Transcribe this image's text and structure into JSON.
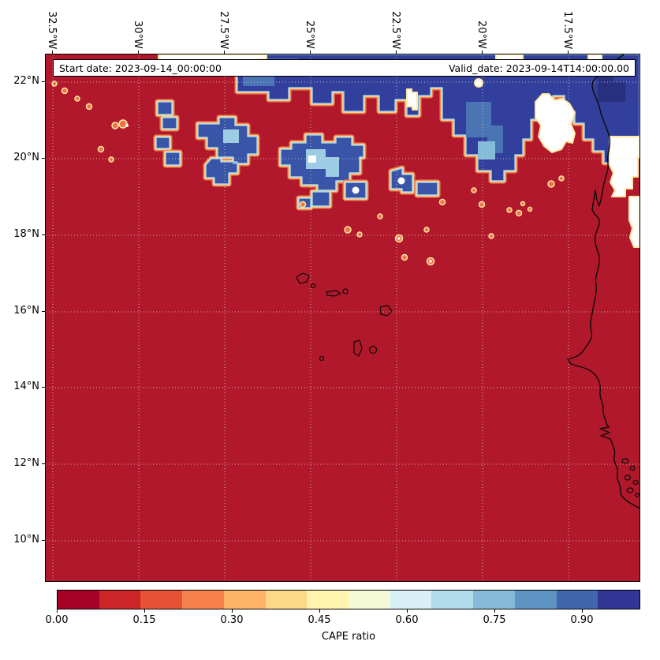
{
  "figure": {
    "annotation_band": {
      "start_date": "Start date: 2023-09-14_00:00:00",
      "valid_date": "Valid_date: 2023-09-14T14:00:00.00"
    },
    "axes": {
      "x_ticks": [
        "32.5°W",
        "30°W",
        "27.5°W",
        "25°W",
        "22.5°W",
        "20°W",
        "17.5°W"
      ],
      "y_ticks": [
        "22°N",
        "20°N",
        "18°N",
        "16°N",
        "14°N",
        "12°N",
        "10°N"
      ]
    },
    "colorbar": {
      "label": "CAPE ratio",
      "tick_labels": [
        "0.00",
        "0.15",
        "0.30",
        "0.45",
        "0.60",
        "0.75",
        "0.90"
      ],
      "tick_positions": [
        0,
        0.15,
        0.3,
        0.45,
        0.6,
        0.75,
        0.9
      ],
      "value_range": [
        0,
        1
      ],
      "colors": [
        "#a50026",
        "#cb2527",
        "#e75136",
        "#f7814c",
        "#fdb265",
        "#fed889",
        "#fff3ad",
        "#f3fad5",
        "#d8eff6",
        "#afdbea",
        "#85bbd8",
        "#5e93c4",
        "#4067ad",
        "#313695"
      ]
    },
    "map_colors": {
      "field_low": "#b2182b",
      "field_high": "#333f9c",
      "missing_data": "#ffffff",
      "coastline": "#0a0a0a"
    }
  },
  "chart_data": {
    "type": "heatmap",
    "variable": "CAPE ratio",
    "title": "",
    "colormap": "RdYlBu, 14 discrete levels",
    "colorbar_label": "CAPE ratio",
    "colorbar_ticks": [
      0.0,
      0.15,
      0.3,
      0.45,
      0.6,
      0.75,
      0.9
    ],
    "value_range": [
      0,
      1
    ],
    "x_axis": {
      "type": "longitude",
      "tick_labels": [
        "32.5°W",
        "30°W",
        "27.5°W",
        "25°W",
        "22.5°W",
        "20°W",
        "17.5°W"
      ],
      "approx_range": [
        "33°W",
        "15.5°W"
      ]
    },
    "y_axis": {
      "type": "latitude",
      "tick_labels": [
        "22°N",
        "20°N",
        "18°N",
        "16°N",
        "14°N",
        "12°N",
        "10°N"
      ],
      "approx_range": [
        "9°N",
        "22.7°N"
      ]
    },
    "grid": "dotted graticule every 2.5° longitude / 2° latitude",
    "annotations": [
      "Start date: 2023-09-14_00:00:00",
      "Valid_date: 2023-09-14T14:00:00.00"
    ],
    "field_regions": [
      {
        "region": "bulk of domain south of ~20°N",
        "value": "≈0 (dark red)"
      },
      {
        "region": "northern edge of domain ~20.5–22.7°N, widest east of 24°W toward the African coast",
        "value": "≈0.9–1.0 (dark blue)"
      },
      {
        "region": "fringes of northern blue mass and isolated convective cells 18–22°N (near 27°W 20°N, 25°W 20°N, 22.5°W 19.5°N)",
        "value": "mixed 0.1–0.9 (orange/yellow rims, light-blue cores)"
      },
      {
        "region": "white patches along top edge, near 18°W 21°N, and along Mauritanian coast 18–21°N",
        "value": "no data / masked"
      }
    ],
    "geography": {
      "coastline": "West African coast (Western Sahara, Mauritania, Senegal, Gambia, Guinea-Bissau) along right edge",
      "islands": "Cape Verde archipelago outlined around 23–25.5°W, 14.7–17.2°N"
    }
  }
}
